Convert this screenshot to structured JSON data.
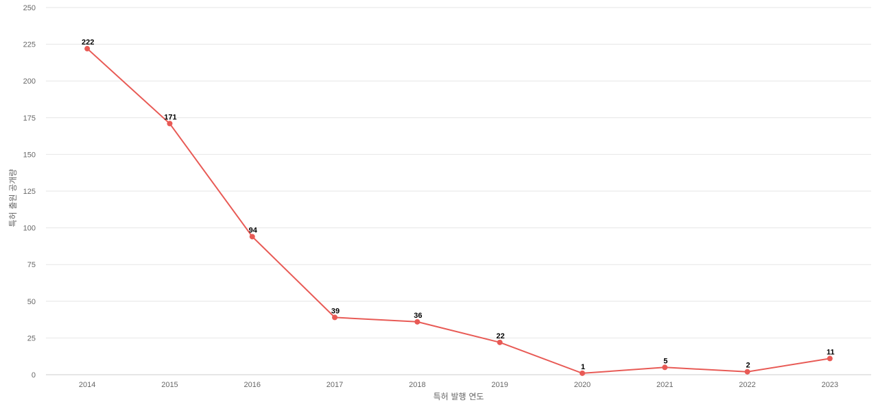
{
  "chart_data": {
    "type": "line",
    "title": "",
    "xlabel": "특허 발행 연도",
    "ylabel": "특허 출원 공개량",
    "x": [
      "2014",
      "2015",
      "2016",
      "2017",
      "2018",
      "2019",
      "2020",
      "2021",
      "2022",
      "2023"
    ],
    "series": [
      {
        "values": [
          222,
          171,
          94,
          39,
          36,
          22,
          1,
          5,
          2,
          11
        ],
        "color": "#e85a55"
      }
    ],
    "ylim": [
      0,
      250
    ],
    "yticks": [
      "0",
      "25",
      "50",
      "75",
      "100",
      "125",
      "150",
      "175",
      "200",
      "225",
      "250"
    ],
    "grid": true,
    "legend": "none",
    "colors": {
      "line": "#e85a55",
      "grid": "#e6e6e6",
      "axis": "#cccccc",
      "tick_text": "#666666",
      "data_label": "#000000"
    }
  }
}
